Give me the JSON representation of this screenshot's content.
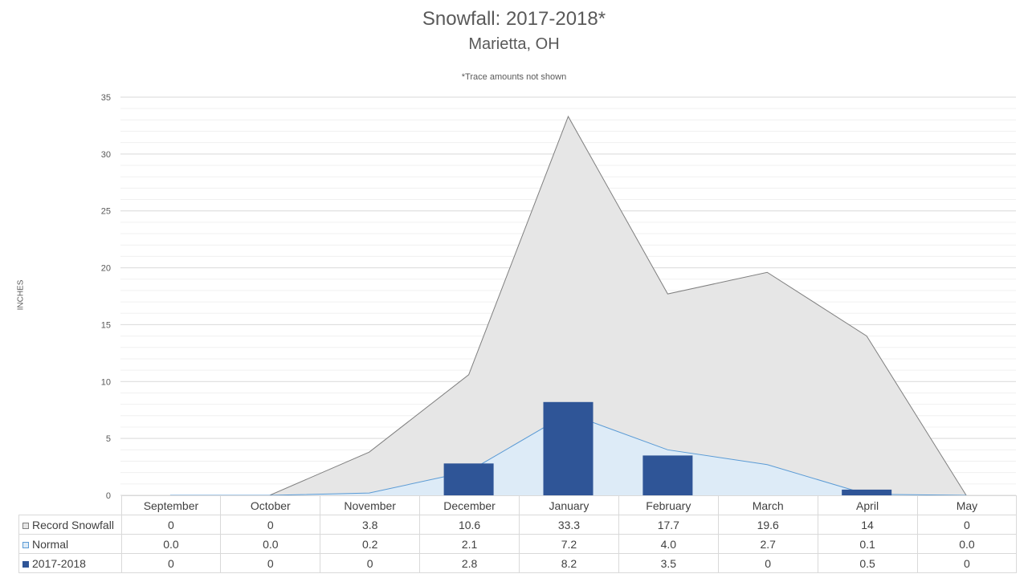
{
  "chart_data": {
    "type": "area",
    "title": "Snowfall: 2017-2018*",
    "subtitle": "Marietta, OH",
    "note": "*Trace amounts not shown",
    "ylabel": "INCHES",
    "xlabel": "",
    "ylim": [
      0,
      35
    ],
    "yticks": [
      "0",
      "5",
      "10",
      "15",
      "20",
      "25",
      "30",
      "35"
    ],
    "grid": true,
    "legend": "data-table",
    "categories": [
      "September",
      "October",
      "November",
      "December",
      "January",
      "February",
      "March",
      "April",
      "May"
    ],
    "series": [
      {
        "name": "Record Snowfall",
        "kind": "area",
        "color": "#e6e6e6",
        "stroke": "#7f7f7f",
        "values": [
          0,
          0,
          3.8,
          10.6,
          33.3,
          17.7,
          19.6,
          14,
          0
        ],
        "labels": [
          "0",
          "0",
          "3.8",
          "10.6",
          "33.3",
          "17.7",
          "19.6",
          "14",
          "0"
        ]
      },
      {
        "name": "Normal",
        "kind": "area",
        "color": "#ddebf7",
        "stroke": "#5b9bd5",
        "values": [
          0.0,
          0.0,
          0.2,
          2.1,
          7.2,
          4.0,
          2.7,
          0.1,
          0.0
        ],
        "labels": [
          "0.0",
          "0.0",
          "0.2",
          "2.1",
          "7.2",
          "4.0",
          "2.7",
          "0.1",
          "0.0"
        ]
      },
      {
        "name": "2017-2018",
        "kind": "bar",
        "color": "#2f5597",
        "values": [
          0,
          0,
          0,
          2.8,
          8.2,
          3.5,
          0,
          0.5,
          0
        ],
        "labels": [
          "0",
          "0",
          "0",
          "2.8",
          "8.2",
          "3.5",
          "0",
          "0.5",
          "0"
        ]
      }
    ]
  }
}
